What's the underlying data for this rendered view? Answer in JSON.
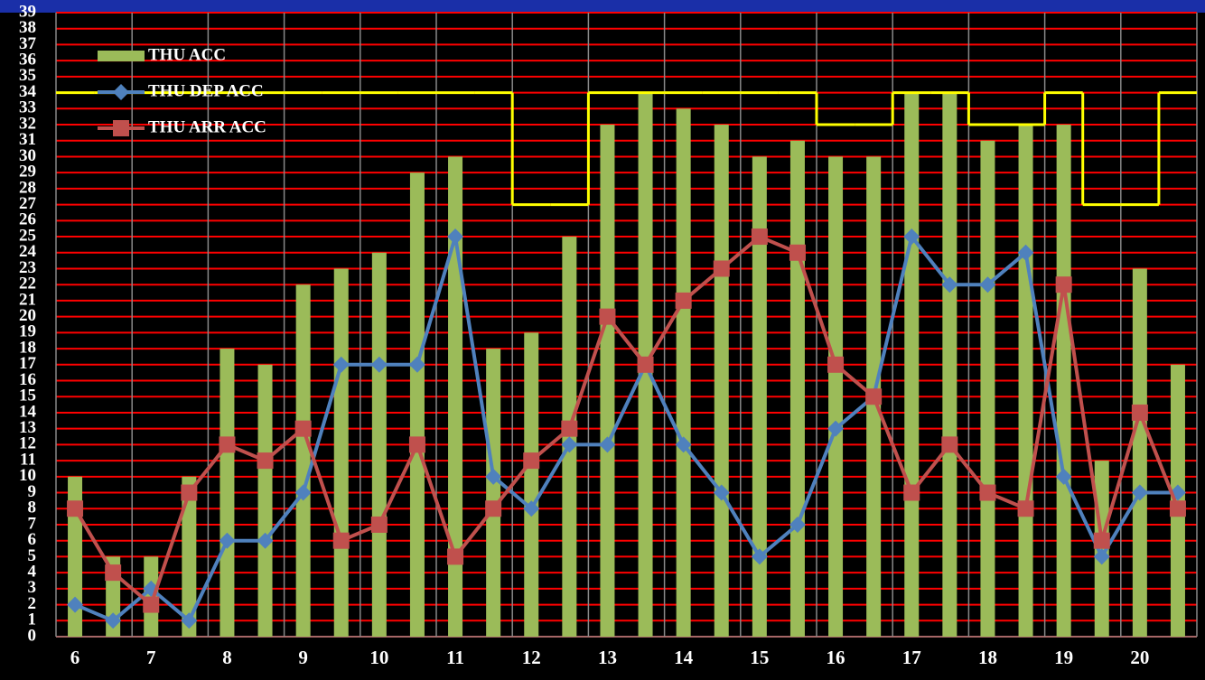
{
  "chart_data": {
    "type": "bar-line",
    "categories": [
      "6",
      null,
      "7",
      null,
      "8",
      null,
      "9",
      null,
      "10",
      null,
      "11",
      null,
      "12",
      null,
      "13",
      null,
      "14",
      null,
      "15",
      null,
      "16",
      null,
      "17",
      null,
      "18",
      null,
      "19",
      null,
      "20",
      null
    ],
    "series": [
      {
        "name": "THU ACC",
        "type": "bar",
        "color": "#9bbb59",
        "values": [
          10,
          5,
          5,
          10,
          18,
          17,
          22,
          23,
          24,
          29,
          30,
          18,
          19,
          25,
          32,
          34,
          33,
          32,
          30,
          31,
          30,
          30,
          34,
          34,
          31,
          32,
          32,
          11,
          23,
          17
        ]
      },
      {
        "name": "THU DEP ACC",
        "type": "line",
        "marker": "diamond",
        "color": "#4f81bd",
        "values": [
          2,
          1,
          3,
          1,
          6,
          6,
          9,
          17,
          17,
          17,
          25,
          10,
          8,
          12,
          12,
          17,
          12,
          9,
          5,
          7,
          13,
          15,
          25,
          22,
          22,
          24,
          10,
          5,
          9,
          9
        ]
      },
      {
        "name": "THU ARR ACC",
        "type": "line",
        "marker": "square",
        "color": "#c0504d",
        "values": [
          8,
          4,
          2,
          9,
          12,
          11,
          13,
          6,
          7,
          12,
          5,
          8,
          11,
          13,
          20,
          17,
          21,
          23,
          25,
          24,
          17,
          15,
          9,
          12,
          9,
          8,
          22,
          6,
          14,
          8
        ]
      },
      {
        "type": "step",
        "color": "#ffff00",
        "values": [
          34,
          34,
          34,
          34,
          34,
          34,
          34,
          34,
          34,
          34,
          34,
          34,
          27,
          27,
          34,
          34,
          34,
          34,
          34,
          34,
          32,
          32,
          34,
          34,
          32,
          32,
          34,
          27,
          27,
          34
        ]
      }
    ],
    "ylim": [
      0,
      39
    ],
    "yticks": [
      0,
      1,
      2,
      3,
      4,
      5,
      6,
      7,
      8,
      9,
      10,
      11,
      12,
      13,
      14,
      15,
      16,
      17,
      18,
      19,
      20,
      21,
      22,
      23,
      24,
      25,
      26,
      27,
      28,
      29,
      30,
      31,
      32,
      33,
      34,
      35,
      36,
      37,
      38,
      39
    ],
    "grid": true,
    "grid_color": "#ff0000",
    "legend": "top-left"
  }
}
